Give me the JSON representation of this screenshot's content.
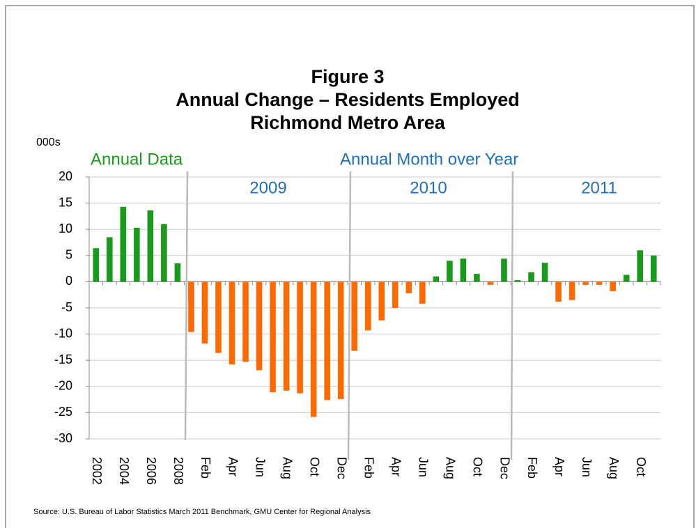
{
  "chart_data": {
    "type": "bar",
    "title": [
      "Figure 3",
      "Annual Change – Residents Employed",
      "Richmond Metro Area"
    ],
    "y_axis_label": "000s",
    "annotations": {
      "annual": "Annual Data",
      "monthly": "Annual Month over Year",
      "years": [
        "2009",
        "2010",
        "2011"
      ]
    },
    "source": "Source: U.S. Bureau of Labor Statistics March 2011 Benchmark, GMU Center for Regional Analysis",
    "categories": [
      "2002",
      null,
      "2004",
      null,
      "2006",
      null,
      "2008",
      null,
      "Feb",
      null,
      "Apr",
      null,
      "Jun",
      null,
      "Aug",
      null,
      "Oct",
      null,
      "Dec",
      null,
      "Feb",
      null,
      "Apr",
      null,
      "Jun",
      null,
      "Aug",
      null,
      "Oct",
      null,
      "Dec",
      null,
      "Feb",
      null,
      "Apr",
      null,
      "Jun",
      null,
      "Aug",
      null,
      "Oct",
      null
    ],
    "values": [
      6.4,
      8.5,
      14.3,
      10.3,
      13.6,
      11.0,
      3.5,
      -9.6,
      -11.8,
      -13.6,
      -15.8,
      -15.3,
      -16.9,
      -21.1,
      -20.8,
      -21.3,
      -25.8,
      -22.6,
      -22.4,
      -13.2,
      -9.3,
      -7.4,
      -5.0,
      -2.2,
      -4.2,
      1.0,
      4.0,
      4.4,
      1.5,
      -0.6,
      4.4,
      0.3,
      1.8,
      3.6,
      -3.8,
      -3.5,
      -0.6,
      -0.6,
      -1.8,
      1.3,
      6.0,
      5.0
    ],
    "color": "#1a9a1a",
    "negative_color": "#ff6a00",
    "ylim": [
      -30,
      20
    ],
    "yticks": [
      -30,
      -25,
      -20,
      -15,
      -10,
      -5,
      0,
      5,
      10,
      15,
      20
    ],
    "grid": true
  }
}
